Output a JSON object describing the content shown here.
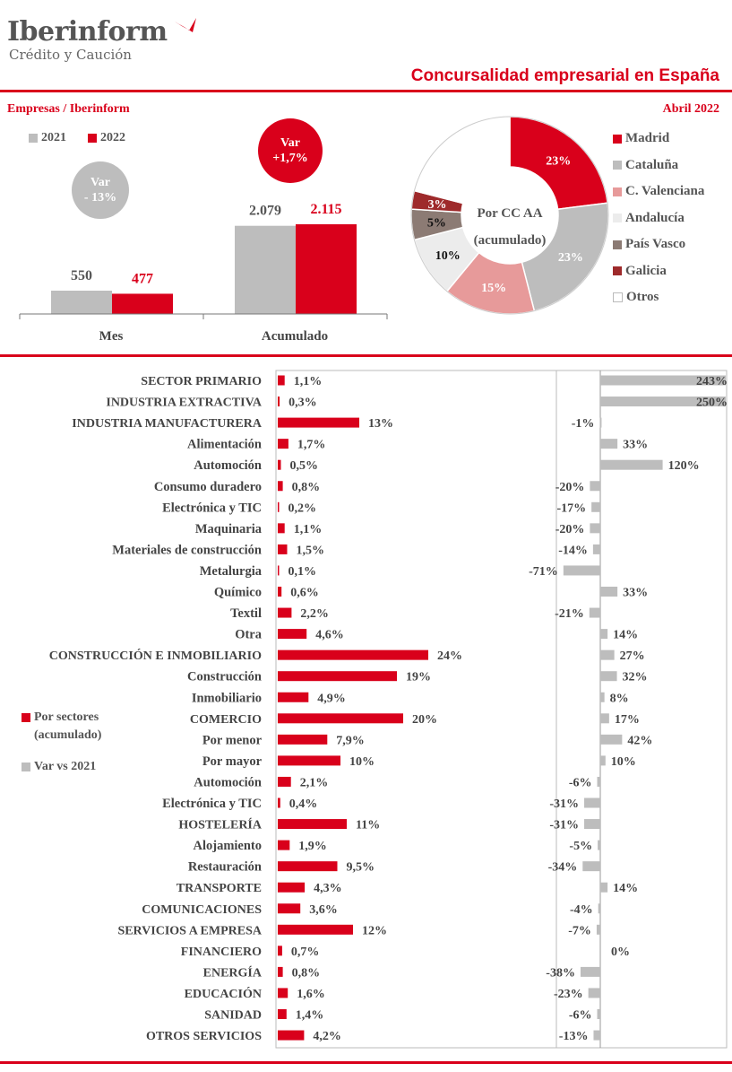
{
  "header": {
    "brand": "Iberinform",
    "brand_sub": "Crédito y Caución",
    "report_title": "Concursalidad empresarial en España",
    "left_section": "Empresas / Iberinform",
    "date": "Abril 2022"
  },
  "colors": {
    "red": "#d9001b",
    "gray": "#bdbdbd",
    "pink": "#e79a9a",
    "light": "#ececec",
    "taupe": "#8c7b74",
    "darkred": "#9e2a2b"
  },
  "chart_data": [
    {
      "type": "bar",
      "categories": [
        "Mes",
        "Acumulado"
      ],
      "series": [
        {
          "name": "2021",
          "values": [
            550,
            2079
          ],
          "labels": [
            "550",
            "2.079"
          ]
        },
        {
          "name": "2022",
          "values": [
            477,
            2115
          ],
          "labels": [
            "477",
            "2.115"
          ]
        }
      ],
      "annotations": [
        {
          "category": "Mes",
          "lines": [
            "Var",
            "- 13%"
          ]
        },
        {
          "category": "Acumulado",
          "lines": [
            "Var",
            "+1,7%"
          ]
        }
      ]
    },
    {
      "type": "pie",
      "center_label": [
        "Por CC AA",
        "(acumulado)"
      ],
      "slices": [
        {
          "name": "Madrid",
          "value": 23,
          "label": "23%",
          "color": "#d9001b"
        },
        {
          "name": "Cataluña",
          "value": 23,
          "label": "23%",
          "color": "#bdbdbd"
        },
        {
          "name": "C. Valenciana",
          "value": 15,
          "label": "15%",
          "color": "#e79a9a"
        },
        {
          "name": "Andalucía",
          "value": 10,
          "label": "10%",
          "color": "#ececec"
        },
        {
          "name": "País Vasco",
          "value": 5,
          "label": "5%",
          "color": "#8c7b74"
        },
        {
          "name": "Galicia",
          "value": 3,
          "label": "3%",
          "color": "#9e2a2b"
        },
        {
          "name": "Otros",
          "value": 21,
          "label": "",
          "color": "#ffffff"
        }
      ]
    },
    {
      "type": "bar",
      "orientation": "horizontal",
      "legend": [
        "Por sectores (acumulado)",
        "Var vs 2021"
      ],
      "rows": [
        {
          "label": "SECTOR PRIMARIO",
          "share": 1.1,
          "share_label": "1,1%",
          "var": 243,
          "var_label": "243%",
          "bold": true
        },
        {
          "label": "INDUSTRIA EXTRACTIVA",
          "share": 0.3,
          "share_label": "0,3%",
          "var": 250,
          "var_label": "250%",
          "bold": true
        },
        {
          "label": "INDUSTRIA MANUFACTURERA",
          "share": 13,
          "share_label": "13%",
          "var": -1,
          "var_label": "-1%",
          "bold": true
        },
        {
          "label": "Alimentación",
          "share": 1.7,
          "share_label": "1,7%",
          "var": 33,
          "var_label": "33%",
          "bold": false
        },
        {
          "label": "Automoción",
          "share": 0.5,
          "share_label": "0,5%",
          "var": 120,
          "var_label": "120%",
          "bold": false
        },
        {
          "label": "Consumo duradero",
          "share": 0.8,
          "share_label": "0,8%",
          "var": -20,
          "var_label": "-20%",
          "bold": false
        },
        {
          "label": "Electrónica y TIC",
          "share": 0.2,
          "share_label": "0,2%",
          "var": -17,
          "var_label": "-17%",
          "bold": false
        },
        {
          "label": "Maquinaria",
          "share": 1.1,
          "share_label": "1,1%",
          "var": -20,
          "var_label": "-20%",
          "bold": false
        },
        {
          "label": "Materiales de construcción",
          "share": 1.5,
          "share_label": "1,5%",
          "var": -14,
          "var_label": "-14%",
          "bold": false
        },
        {
          "label": "Metalurgia",
          "share": 0.1,
          "share_label": "0,1%",
          "var": -71,
          "var_label": "-71%",
          "bold": false
        },
        {
          "label": "Químico",
          "share": 0.6,
          "share_label": "0,6%",
          "var": 33,
          "var_label": "33%",
          "bold": false
        },
        {
          "label": "Textil",
          "share": 2.2,
          "share_label": "2,2%",
          "var": -21,
          "var_label": "-21%",
          "bold": false
        },
        {
          "label": "Otra",
          "share": 4.6,
          "share_label": "4,6%",
          "var": 14,
          "var_label": "14%",
          "bold": false
        },
        {
          "label": "CONSTRUCCIÓN E INMOBILIARIO",
          "share": 24,
          "share_label": "24%",
          "var": 27,
          "var_label": "27%",
          "bold": true
        },
        {
          "label": "Construcción",
          "share": 19,
          "share_label": "19%",
          "var": 32,
          "var_label": "32%",
          "bold": false
        },
        {
          "label": "Inmobiliario",
          "share": 4.9,
          "share_label": "4,9%",
          "var": 8,
          "var_label": "8%",
          "bold": false
        },
        {
          "label": "COMERCIO",
          "share": 20,
          "share_label": "20%",
          "var": 17,
          "var_label": "17%",
          "bold": true
        },
        {
          "label": "Por menor",
          "share": 7.9,
          "share_label": "7,9%",
          "var": 42,
          "var_label": "42%",
          "bold": false
        },
        {
          "label": "Por mayor",
          "share": 10,
          "share_label": "10%",
          "var": 10,
          "var_label": "10%",
          "bold": false
        },
        {
          "label": "Automoción",
          "share": 2.1,
          "share_label": "2,1%",
          "var": -6,
          "var_label": "-6%",
          "bold": false
        },
        {
          "label": "Electrónica y TIC",
          "share": 0.4,
          "share_label": "0,4%",
          "var": -31,
          "var_label": "-31%",
          "bold": false
        },
        {
          "label": "HOSTELERÍA",
          "share": 11,
          "share_label": "11%",
          "var": -31,
          "var_label": "-31%",
          "bold": true
        },
        {
          "label": "Alojamiento",
          "share": 1.9,
          "share_label": "1,9%",
          "var": -5,
          "var_label": "-5%",
          "bold": false
        },
        {
          "label": "Restauración",
          "share": 9.5,
          "share_label": "9,5%",
          "var": -34,
          "var_label": "-34%",
          "bold": false
        },
        {
          "label": "TRANSPORTE",
          "share": 4.3,
          "share_label": "4,3%",
          "var": 14,
          "var_label": "14%",
          "bold": true
        },
        {
          "label": "COMUNICACIONES",
          "share": 3.6,
          "share_label": "3,6%",
          "var": -4,
          "var_label": "-4%",
          "bold": true
        },
        {
          "label": "SERVICIOS A EMPRESA",
          "share": 12,
          "share_label": "12%",
          "var": -7,
          "var_label": "-7%",
          "bold": true
        },
        {
          "label": "FINANCIERO",
          "share": 0.7,
          "share_label": "0,7%",
          "var": 0,
          "var_label": "0%",
          "bold": true
        },
        {
          "label": "ENERGÍA",
          "share": 0.8,
          "share_label": "0,8%",
          "var": -38,
          "var_label": "-38%",
          "bold": true
        },
        {
          "label": "EDUCACIÓN",
          "share": 1.6,
          "share_label": "1,6%",
          "var": -23,
          "var_label": "-23%",
          "bold": true
        },
        {
          "label": "SANIDAD",
          "share": 1.4,
          "share_label": "1,4%",
          "var": -6,
          "var_label": "-6%",
          "bold": true
        },
        {
          "label": "OTROS SERVICIOS",
          "share": 4.2,
          "share_label": "4,2%",
          "var": -13,
          "var_label": "-13%",
          "bold": true
        }
      ]
    }
  ]
}
